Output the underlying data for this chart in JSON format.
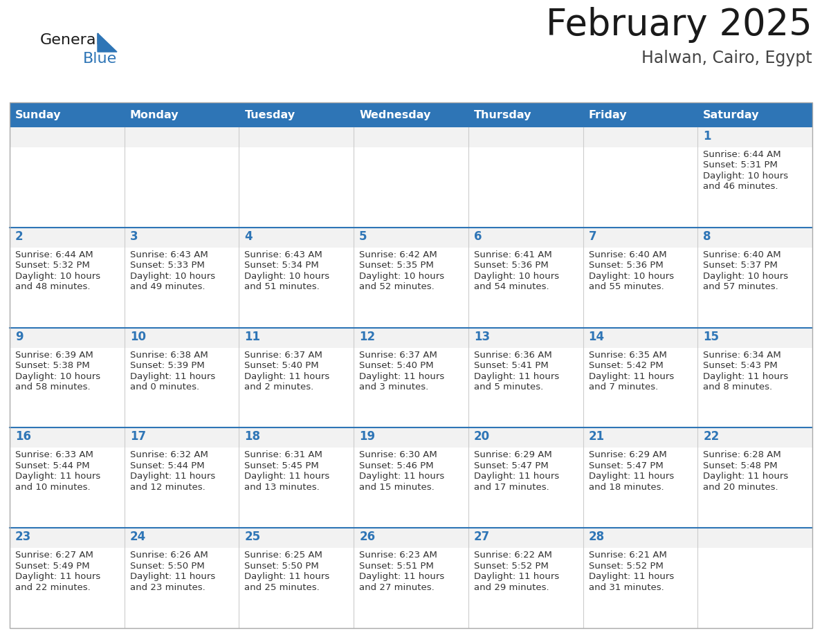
{
  "title": "February 2025",
  "subtitle": "Halwan, Cairo, Egypt",
  "header_color": "#2E75B6",
  "header_text_color": "#FFFFFF",
  "cell_bg_color": "#FFFFFF",
  "cell_top_bg_color": "#F2F2F2",
  "row_border_color": "#2E75B6",
  "cell_border_color": "#CCCCCC",
  "day_number_color": "#2E75B6",
  "cell_text_color": "#333333",
  "days_of_week": [
    "Sunday",
    "Monday",
    "Tuesday",
    "Wednesday",
    "Thursday",
    "Friday",
    "Saturday"
  ],
  "calendar": [
    [
      {
        "day": "",
        "sunrise": "",
        "sunset": "",
        "daylight_h": "",
        "daylight_m": ""
      },
      {
        "day": "",
        "sunrise": "",
        "sunset": "",
        "daylight_h": "",
        "daylight_m": ""
      },
      {
        "day": "",
        "sunrise": "",
        "sunset": "",
        "daylight_h": "",
        "daylight_m": ""
      },
      {
        "day": "",
        "sunrise": "",
        "sunset": "",
        "daylight_h": "",
        "daylight_m": ""
      },
      {
        "day": "",
        "sunrise": "",
        "sunset": "",
        "daylight_h": "",
        "daylight_m": ""
      },
      {
        "day": "",
        "sunrise": "",
        "sunset": "",
        "daylight_h": "",
        "daylight_m": ""
      },
      {
        "day": "1",
        "sunrise": "6:44 AM",
        "sunset": "5:31 PM",
        "daylight_h": "10 hours",
        "daylight_m": "and 46 minutes."
      }
    ],
    [
      {
        "day": "2",
        "sunrise": "6:44 AM",
        "sunset": "5:32 PM",
        "daylight_h": "10 hours",
        "daylight_m": "and 48 minutes."
      },
      {
        "day": "3",
        "sunrise": "6:43 AM",
        "sunset": "5:33 PM",
        "daylight_h": "10 hours",
        "daylight_m": "and 49 minutes."
      },
      {
        "day": "4",
        "sunrise": "6:43 AM",
        "sunset": "5:34 PM",
        "daylight_h": "10 hours",
        "daylight_m": "and 51 minutes."
      },
      {
        "day": "5",
        "sunrise": "6:42 AM",
        "sunset": "5:35 PM",
        "daylight_h": "10 hours",
        "daylight_m": "and 52 minutes."
      },
      {
        "day": "6",
        "sunrise": "6:41 AM",
        "sunset": "5:36 PM",
        "daylight_h": "10 hours",
        "daylight_m": "and 54 minutes."
      },
      {
        "day": "7",
        "sunrise": "6:40 AM",
        "sunset": "5:36 PM",
        "daylight_h": "10 hours",
        "daylight_m": "and 55 minutes."
      },
      {
        "day": "8",
        "sunrise": "6:40 AM",
        "sunset": "5:37 PM",
        "daylight_h": "10 hours",
        "daylight_m": "and 57 minutes."
      }
    ],
    [
      {
        "day": "9",
        "sunrise": "6:39 AM",
        "sunset": "5:38 PM",
        "daylight_h": "10 hours",
        "daylight_m": "and 58 minutes."
      },
      {
        "day": "10",
        "sunrise": "6:38 AM",
        "sunset": "5:39 PM",
        "daylight_h": "11 hours",
        "daylight_m": "and 0 minutes."
      },
      {
        "day": "11",
        "sunrise": "6:37 AM",
        "sunset": "5:40 PM",
        "daylight_h": "11 hours",
        "daylight_m": "and 2 minutes."
      },
      {
        "day": "12",
        "sunrise": "6:37 AM",
        "sunset": "5:40 PM",
        "daylight_h": "11 hours",
        "daylight_m": "and 3 minutes."
      },
      {
        "day": "13",
        "sunrise": "6:36 AM",
        "sunset": "5:41 PM",
        "daylight_h": "11 hours",
        "daylight_m": "and 5 minutes."
      },
      {
        "day": "14",
        "sunrise": "6:35 AM",
        "sunset": "5:42 PM",
        "daylight_h": "11 hours",
        "daylight_m": "and 7 minutes."
      },
      {
        "day": "15",
        "sunrise": "6:34 AM",
        "sunset": "5:43 PM",
        "daylight_h": "11 hours",
        "daylight_m": "and 8 minutes."
      }
    ],
    [
      {
        "day": "16",
        "sunrise": "6:33 AM",
        "sunset": "5:44 PM",
        "daylight_h": "11 hours",
        "daylight_m": "and 10 minutes."
      },
      {
        "day": "17",
        "sunrise": "6:32 AM",
        "sunset": "5:44 PM",
        "daylight_h": "11 hours",
        "daylight_m": "and 12 minutes."
      },
      {
        "day": "18",
        "sunrise": "6:31 AM",
        "sunset": "5:45 PM",
        "daylight_h": "11 hours",
        "daylight_m": "and 13 minutes."
      },
      {
        "day": "19",
        "sunrise": "6:30 AM",
        "sunset": "5:46 PM",
        "daylight_h": "11 hours",
        "daylight_m": "and 15 minutes."
      },
      {
        "day": "20",
        "sunrise": "6:29 AM",
        "sunset": "5:47 PM",
        "daylight_h": "11 hours",
        "daylight_m": "and 17 minutes."
      },
      {
        "day": "21",
        "sunrise": "6:29 AM",
        "sunset": "5:47 PM",
        "daylight_h": "11 hours",
        "daylight_m": "and 18 minutes."
      },
      {
        "day": "22",
        "sunrise": "6:28 AM",
        "sunset": "5:48 PM",
        "daylight_h": "11 hours",
        "daylight_m": "and 20 minutes."
      }
    ],
    [
      {
        "day": "23",
        "sunrise": "6:27 AM",
        "sunset": "5:49 PM",
        "daylight_h": "11 hours",
        "daylight_m": "and 22 minutes."
      },
      {
        "day": "24",
        "sunrise": "6:26 AM",
        "sunset": "5:50 PM",
        "daylight_h": "11 hours",
        "daylight_m": "and 23 minutes."
      },
      {
        "day": "25",
        "sunrise": "6:25 AM",
        "sunset": "5:50 PM",
        "daylight_h": "11 hours",
        "daylight_m": "and 25 minutes."
      },
      {
        "day": "26",
        "sunrise": "6:23 AM",
        "sunset": "5:51 PM",
        "daylight_h": "11 hours",
        "daylight_m": "and 27 minutes."
      },
      {
        "day": "27",
        "sunrise": "6:22 AM",
        "sunset": "5:52 PM",
        "daylight_h": "11 hours",
        "daylight_m": "and 29 minutes."
      },
      {
        "day": "28",
        "sunrise": "6:21 AM",
        "sunset": "5:52 PM",
        "daylight_h": "11 hours",
        "daylight_m": "and 31 minutes."
      },
      {
        "day": "",
        "sunrise": "",
        "sunset": "",
        "daylight_h": "",
        "daylight_m": ""
      }
    ]
  ]
}
